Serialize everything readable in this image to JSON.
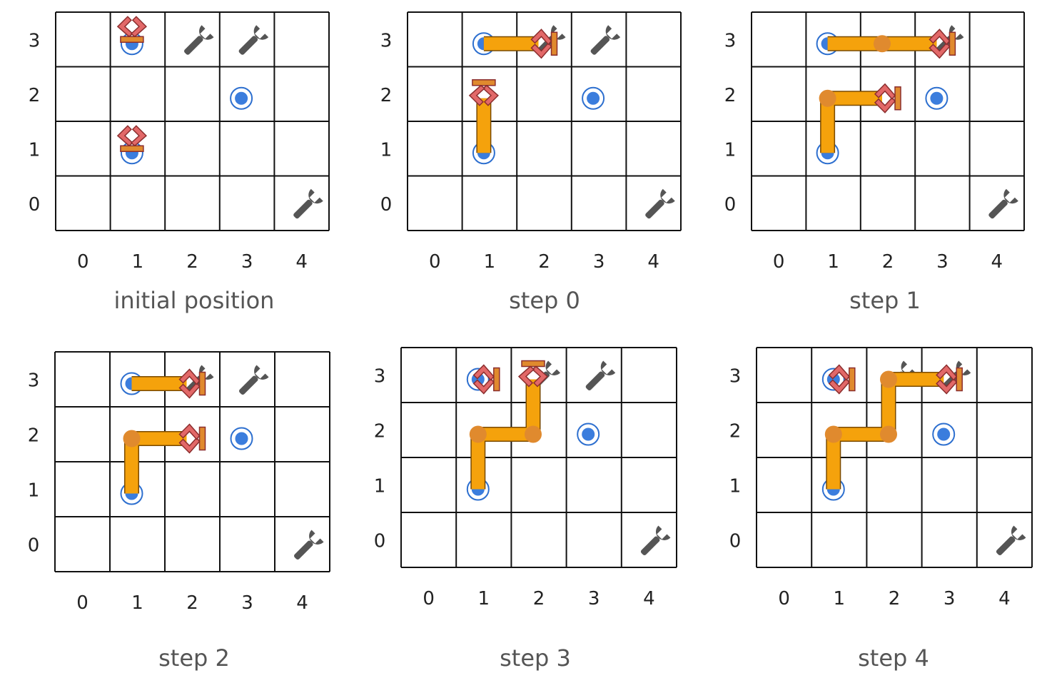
{
  "colors": {
    "grid": "#111111",
    "arm": "#f5a20c",
    "arm_joint": "#e08a2e",
    "gripper": "#e26868",
    "gripper_stroke": "#8b2e2e",
    "target_dot": "#3b7ddd",
    "target_ring": "#2d6fcf",
    "tool": "#555555",
    "caption_text": "#555555",
    "tick_text": "#222222"
  },
  "icons": {
    "tool": "wrench-icon",
    "target": "target-marker-icon",
    "gripper": "gripper-icon",
    "arm": "arm-segment"
  },
  "grid": {
    "columns": 5,
    "rows": 4
  },
  "panels": [
    {
      "caption": "initial position",
      "x_ticks": [
        "0",
        "1",
        "2",
        "3",
        "4"
      ],
      "y_ticks": [
        "0",
        "1",
        "2",
        "3"
      ],
      "targets": [
        [
          1,
          3
        ],
        [
          3,
          2
        ],
        [
          1,
          1
        ]
      ],
      "tools": [
        [
          2,
          3
        ],
        [
          3,
          3
        ],
        [
          4,
          0
        ]
      ],
      "arms": [
        {
          "path": [],
          "gripper": "down"
        },
        {
          "path": [],
          "gripper": "down"
        }
      ]
    },
    {
      "caption": "step 0",
      "x_ticks": [
        "0",
        "1",
        "2",
        "3",
        "4"
      ],
      "y_ticks": [
        "0",
        "1",
        "2",
        "3"
      ],
      "targets": [
        [
          1,
          3
        ],
        [
          3,
          2
        ],
        [
          1,
          1
        ]
      ],
      "tools": [
        [
          2,
          3
        ],
        [
          3,
          3
        ],
        [
          4,
          0
        ]
      ],
      "arms": [
        {
          "path": [
            [
              1,
              3
            ],
            [
              2,
              3
            ]
          ],
          "gripper": "right"
        },
        {
          "path": [
            [
              1,
              1
            ],
            [
              1,
              2
            ]
          ],
          "gripper": "up"
        }
      ]
    },
    {
      "caption": "step 1",
      "x_ticks": [
        "0",
        "1",
        "2",
        "3",
        "4"
      ],
      "y_ticks": [
        "0",
        "1",
        "2",
        "3"
      ],
      "targets": [
        [
          1,
          3
        ],
        [
          3,
          2
        ],
        [
          1,
          1
        ]
      ],
      "tools": [
        [
          3,
          3
        ],
        [
          4,
          0
        ]
      ],
      "arms": [
        {
          "path": [
            [
              1,
              3
            ],
            [
              2,
              3
            ],
            [
              3,
              3
            ]
          ],
          "gripper": "right"
        },
        {
          "path": [
            [
              1,
              1
            ],
            [
              1,
              2
            ],
            [
              2,
              2
            ]
          ],
          "gripper": "right"
        }
      ]
    },
    {
      "caption": "step 2",
      "x_ticks": [
        "0",
        "1",
        "2",
        "3",
        "4"
      ],
      "y_ticks": [
        "0",
        "1",
        "2",
        "3"
      ],
      "targets": [
        [
          1,
          3
        ],
        [
          3,
          2
        ],
        [
          1,
          1
        ]
      ],
      "tools": [
        [
          2,
          3
        ],
        [
          3,
          3
        ],
        [
          4,
          0
        ]
      ],
      "arms": [
        {
          "path": [
            [
              1,
              3
            ],
            [
              2,
              3
            ]
          ],
          "gripper": "right"
        },
        {
          "path": [
            [
              1,
              1
            ],
            [
              1,
              2
            ],
            [
              2,
              2
            ]
          ],
          "gripper": "right"
        }
      ]
    },
    {
      "caption": "step 3",
      "x_ticks": [
        "0",
        "1",
        "2",
        "3",
        "4"
      ],
      "y_ticks": [
        "0",
        "1",
        "2",
        "3"
      ],
      "targets": [
        [
          1,
          3
        ],
        [
          3,
          2
        ],
        [
          1,
          1
        ]
      ],
      "tools": [
        [
          2,
          3
        ],
        [
          3,
          3
        ],
        [
          4,
          0
        ]
      ],
      "arms": [
        {
          "path": [
            [
              1,
              3
            ]
          ],
          "gripper": "right"
        },
        {
          "path": [
            [
              1,
              1
            ],
            [
              1,
              2
            ],
            [
              2,
              2
            ],
            [
              2,
              3
            ]
          ],
          "gripper": "up"
        }
      ]
    },
    {
      "caption": "step 4",
      "x_ticks": [
        "0",
        "1",
        "2",
        "3",
        "4"
      ],
      "y_ticks": [
        "0",
        "1",
        "2",
        "3"
      ],
      "targets": [
        [
          1,
          3
        ],
        [
          3,
          2
        ],
        [
          1,
          1
        ]
      ],
      "tools": [
        [
          2,
          3
        ],
        [
          3,
          3
        ],
        [
          4,
          0
        ]
      ],
      "arms": [
        {
          "path": [
            [
              1,
              3
            ]
          ],
          "gripper": "right"
        },
        {
          "path": [
            [
              1,
              1
            ],
            [
              1,
              2
            ],
            [
              2,
              2
            ],
            [
              2,
              3
            ],
            [
              3,
              3
            ]
          ],
          "gripper": "right"
        }
      ]
    }
  ]
}
